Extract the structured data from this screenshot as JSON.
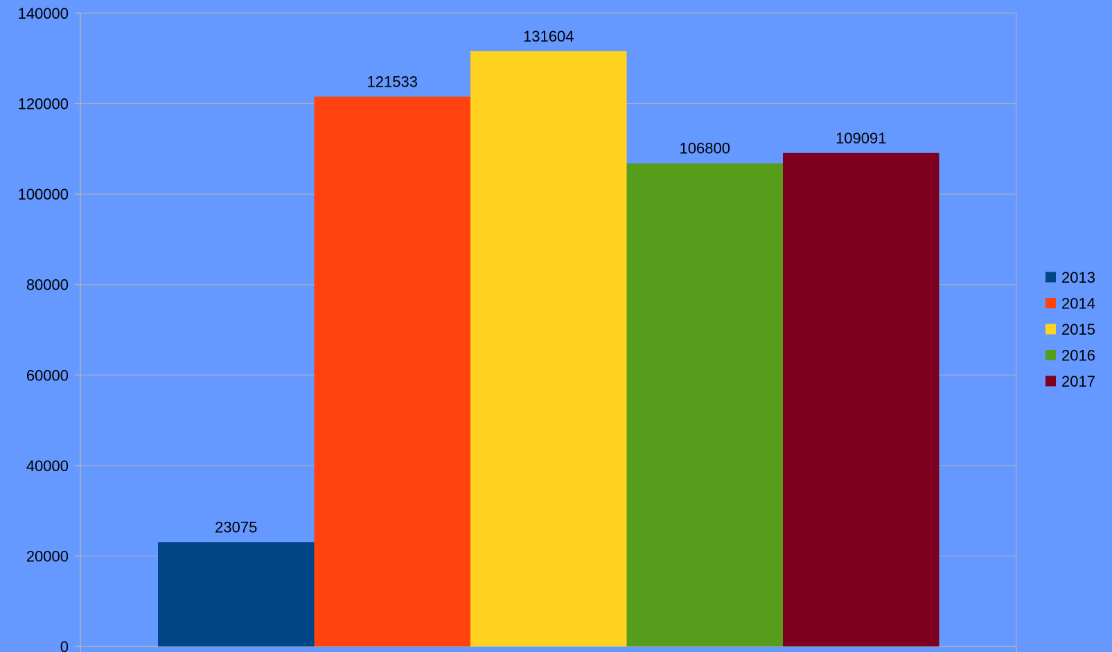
{
  "chart_data": {
    "type": "bar",
    "title": "",
    "xlabel": "",
    "ylabel": "",
    "ylim": [
      0,
      140000
    ],
    "yticks": [
      0,
      20000,
      40000,
      60000,
      80000,
      100000,
      120000,
      140000
    ],
    "yticks_text": [
      "0",
      "20000",
      "40000",
      "60000",
      "80000",
      "100000",
      "120000",
      "140000"
    ],
    "grid": true,
    "legend_position": "right",
    "background_color": "#6699ff",
    "categories": [
      ""
    ],
    "series": [
      {
        "name": "2013",
        "values": [
          23075
        ],
        "value_text": "23075",
        "color": "#004586"
      },
      {
        "name": "2014",
        "values": [
          121533
        ],
        "value_text": "121533",
        "color": "#ff420e"
      },
      {
        "name": "2015",
        "values": [
          131604
        ],
        "value_text": "131604",
        "color": "#ffd320"
      },
      {
        "name": "2016",
        "values": [
          106800
        ],
        "value_text": "106800",
        "color": "#579d1c"
      },
      {
        "name": "2017",
        "values": [
          109091
        ],
        "value_text": "109091",
        "color": "#7e0021"
      }
    ]
  }
}
